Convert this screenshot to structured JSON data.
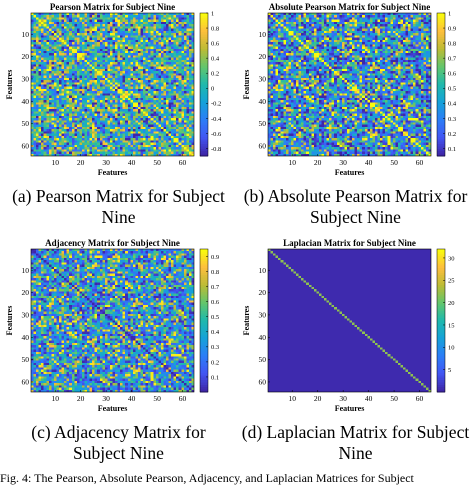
{
  "chart_data": [
    {
      "type": "heatmap",
      "title": "Pearson Matrix for Subject Nine",
      "xlabel": "Features",
      "ylabel": "Features",
      "size": 64,
      "pattern": "pearson",
      "xticks": [
        10,
        20,
        30,
        40,
        50,
        60
      ],
      "yticks": [
        10,
        20,
        30,
        40,
        50,
        60
      ],
      "clim": [
        -0.9,
        1.0
      ],
      "colorbar_ticks": [
        1,
        0.8,
        0.6,
        0.4,
        0.2,
        0,
        -0.2,
        -0.4,
        -0.6,
        -0.8
      ],
      "colorbar_tick_labels": [
        "1",
        "0.8",
        "0.6",
        "0.4",
        "0.2",
        "0",
        "-0.2",
        "-0.4",
        "-0.6",
        "-0.8"
      ],
      "colormap": [
        "#3e26a8",
        "#4256f4",
        "#2c7ef7",
        "#15a2d8",
        "#1fb9ac",
        "#63c66c",
        "#bbbc35",
        "#fdbe3d",
        "#f9fb0e"
      ],
      "caption": [
        "(a) Pearson Matrix for Subject",
        "Nine"
      ]
    },
    {
      "type": "heatmap",
      "title": "Absolute Pearson Matrix for Subject Nine",
      "xlabel": "Features",
      "ylabel": "Features",
      "size": 64,
      "pattern": "absolute",
      "xticks": [
        10,
        20,
        30,
        40,
        50,
        60
      ],
      "yticks": [
        10,
        20,
        30,
        40,
        50,
        60
      ],
      "clim": [
        0.05,
        1.0
      ],
      "colorbar_ticks": [
        1,
        0.9,
        0.8,
        0.7,
        0.6,
        0.5,
        0.4,
        0.3,
        0.2,
        0.1
      ],
      "colorbar_tick_labels": [
        "1",
        "0.9",
        "0.8",
        "0.7",
        "0.6",
        "0.5",
        "0.4",
        "0.3",
        "0.2",
        "0.1"
      ],
      "colormap": [
        "#3e26a8",
        "#4256f4",
        "#2c7ef7",
        "#15a2d8",
        "#1fb9ac",
        "#63c66c",
        "#bbbc35",
        "#fdbe3d",
        "#f9fb0e"
      ],
      "caption": [
        "(b) Absolute Pearson Matrix for",
        "Subject Nine"
      ]
    },
    {
      "type": "heatmap",
      "title": "Adjacency Matrix for Subject Nine",
      "xlabel": "Features",
      "ylabel": "Features",
      "size": 64,
      "pattern": "adjacency",
      "xticks": [
        10,
        20,
        30,
        40,
        50,
        60
      ],
      "yticks": [
        10,
        20,
        30,
        40,
        50,
        60
      ],
      "clim": [
        0.0,
        0.95
      ],
      "colorbar_ticks": [
        0.9,
        0.8,
        0.7,
        0.6,
        0.5,
        0.4,
        0.3,
        0.2,
        0.1
      ],
      "colorbar_tick_labels": [
        "0.9",
        "0.8",
        "0.7",
        "0.6",
        "0.5",
        "0.4",
        "0.3",
        "0.2",
        "0.1"
      ],
      "colormap": [
        "#3e26a8",
        "#4256f4",
        "#2c7ef7",
        "#15a2d8",
        "#1fb9ac",
        "#63c66c",
        "#bbbc35",
        "#fdbe3d",
        "#f9fb0e"
      ],
      "caption": [
        "(c) Adjacency Matrix for",
        "Subject Nine"
      ]
    },
    {
      "type": "heatmap",
      "title": "Laplacian Matrix for Subject Nine",
      "xlabel": "Features",
      "ylabel": "Features",
      "size": 64,
      "pattern": "laplacian",
      "xticks": [
        10,
        20,
        30,
        40,
        50,
        60
      ],
      "yticks": [
        10,
        20,
        30,
        40,
        50,
        60
      ],
      "clim": [
        0,
        32
      ],
      "colorbar_ticks": [
        30,
        25,
        20,
        15,
        10,
        5
      ],
      "colorbar_tick_labels": [
        "30",
        "25",
        "20",
        "15",
        "10",
        "5"
      ],
      "colormap": [
        "#3e26a8",
        "#4256f4",
        "#2c7ef7",
        "#15a2d8",
        "#1fb9ac",
        "#63c66c",
        "#bbbc35",
        "#fdbe3d",
        "#f9fb0e"
      ],
      "caption": [
        "(d) Laplacian Matrix for Subject",
        "Nine"
      ]
    }
  ],
  "figure_caption": "Fig. 4: The Pearson, Absolute Pearson, Adjacency, and Laplacian Matrices for Subject"
}
